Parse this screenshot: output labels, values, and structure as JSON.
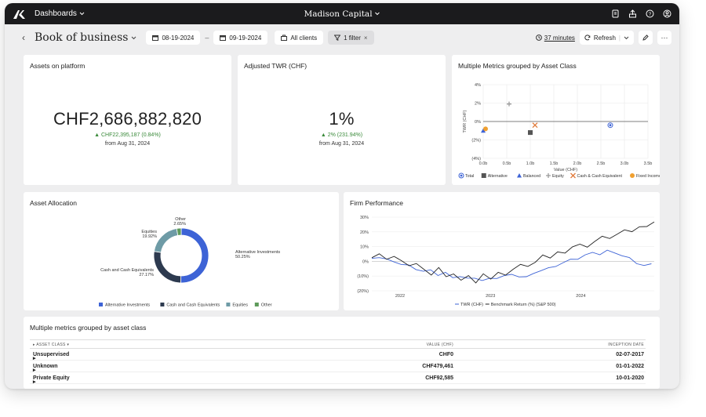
{
  "topbar": {
    "menu_label": "Dashboards",
    "brand": "Madison Capital"
  },
  "toolbar": {
    "title": "Book of business",
    "start_date": "08-19-2024",
    "date_separator": "–",
    "end_date": "09-19-2024",
    "clients_label": "All clients",
    "filter_label": "1 filter",
    "minutes_label": "37 minutes",
    "refresh_label": "Refresh"
  },
  "assets_card": {
    "title": "Assets on platform",
    "value": "CHF2,686,882,820",
    "delta": "▲ CHF22,395,187 (0.84%)",
    "since": "from Aug 31, 2024"
  },
  "twr_card": {
    "title": "Adjusted TWR (CHF)",
    "value": "1%",
    "delta": "▲ 2% (231.94%)",
    "since": "from Aug 31, 2024"
  },
  "scatter_card": {
    "title": "Multiple Metrics grouped by Asset Class"
  },
  "allocation_card": {
    "title": "Asset Allocation"
  },
  "performance_card": {
    "title": "Firm Performance"
  },
  "table_card": {
    "title": "Multiple metrics grouped by asset class",
    "headers": {
      "asset_class": "ASSET CLASS",
      "value": "VALUE (CHF)",
      "inception": "INCEPTION DATE"
    },
    "rows": [
      {
        "name": "Unsupervised",
        "value": "CHF0",
        "date": "02-07-2017"
      },
      {
        "name": "Unknown",
        "value": "CHF479,461",
        "date": "01-01-2022"
      },
      {
        "name": "Private Equity",
        "value": "CHF92,585",
        "date": "10-01-2020"
      }
    ]
  },
  "colors": {
    "blue": "#3d63d6",
    "navy": "#2d3a4f",
    "teal": "#6e9ba6",
    "green": "#5d9a5a",
    "grey_marker": "#9a9a9a",
    "orange": "#e07a3a",
    "gold": "#f0a030"
  },
  "chart_data": [
    {
      "type": "scatter",
      "title": "Multiple Metrics grouped by Asset Class",
      "xlabel": "Value (CHF)",
      "ylabel": "TWR (CHF)",
      "xlim": [
        0,
        3.5
      ],
      "ylim": [
        -4,
        4
      ],
      "x_ticks": [
        "0.0b",
        "0.5b",
        "1.0b",
        "1.5b",
        "2.0b",
        "2.5b",
        "3.0b",
        "3.5b"
      ],
      "y_ticks": [
        "4%",
        "2%",
        "0%",
        "(2%)",
        "(4%)"
      ],
      "series": [
        {
          "name": "Total",
          "x": 2.7,
          "y": -0.4,
          "marker": "circle-dot",
          "color": "#3d63d6"
        },
        {
          "name": "Alternative",
          "x": 1.0,
          "y": -1.2,
          "marker": "square",
          "color": "#555555"
        },
        {
          "name": "Balanced",
          "x": 0.0,
          "y": -1.0,
          "marker": "triangle",
          "color": "#3d63d6"
        },
        {
          "name": "Equity",
          "x": 0.55,
          "y": 1.9,
          "marker": "plus",
          "color": "#9a9a9a"
        },
        {
          "name": "Cash & Cash Equivalent",
          "x": 1.1,
          "y": -0.4,
          "marker": "x",
          "color": "#e07a3a"
        },
        {
          "name": "Fixed Income",
          "x": 0.05,
          "y": -0.8,
          "marker": "circle",
          "color": "#f0a030"
        }
      ],
      "legend": "bottom"
    },
    {
      "type": "pie",
      "title": "Asset Allocation",
      "donut": true,
      "slices": [
        {
          "label": "Alternative Investments",
          "pct_label": "50.25%",
          "value": 50.25,
          "color": "#3d63d6"
        },
        {
          "label": "Cash and Cash Equivalents",
          "pct_label": "27.17%",
          "value": 27.17,
          "color": "#2d3a4f"
        },
        {
          "label": "Equities",
          "pct_label": "19.92%",
          "value": 19.92,
          "color": "#6e9ba6"
        },
        {
          "label": "Other",
          "pct_label": "2.65%",
          "value": 2.65,
          "color": "#5d9a5a"
        }
      ],
      "legend": "bottom"
    },
    {
      "type": "line",
      "title": "Firm Performance",
      "y_ticks": [
        "30%",
        "20%",
        "10%",
        "0%",
        "(10%)",
        "(20%)"
      ],
      "ylim": [
        -20,
        30
      ],
      "x_ticks": [
        "2022",
        "2023",
        "2024"
      ],
      "x_tick_pos": [
        0.1,
        0.42,
        0.74
      ],
      "series": [
        {
          "name": "TWR (CHF)",
          "color": "#3d63d6",
          "values": [
            2,
            3,
            1,
            0,
            -2,
            -3,
            -5,
            -7,
            -6,
            -9,
            -8,
            -11,
            -10,
            -12,
            -11,
            -13,
            -12,
            -11,
            -10,
            -9,
            -10,
            -11,
            -8,
            -6,
            -5,
            -3,
            -1,
            1,
            2,
            4,
            6,
            5,
            7,
            6,
            4,
            2,
            -1,
            -3,
            -2
          ]
        },
        {
          "name": "Benchmark Return (%) (S&P 500)",
          "color": "#222222",
          "values": [
            3,
            5,
            1,
            4,
            0,
            -3,
            -1,
            -6,
            -9,
            -4,
            -11,
            -8,
            -13,
            -10,
            -14,
            -9,
            -12,
            -7,
            -10,
            -5,
            -2,
            -4,
            0,
            4,
            2,
            7,
            5,
            10,
            12,
            9,
            14,
            17,
            15,
            19,
            21,
            20,
            24,
            23,
            27
          ]
        }
      ],
      "legend": "bottom"
    }
  ]
}
